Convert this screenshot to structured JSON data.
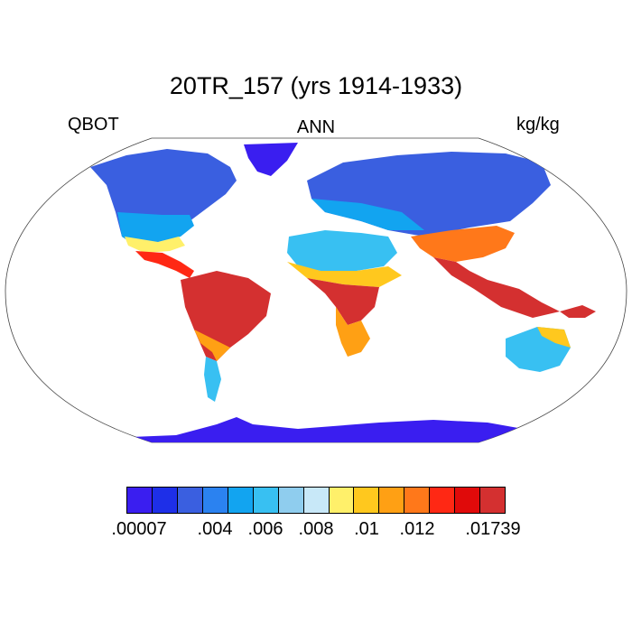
{
  "title": "20TR_157 (yrs 1914-1933)",
  "variable": "QBOT",
  "period": "ANN",
  "units": "kg/kg",
  "colorbar": {
    "colors": [
      "#3a1ef0",
      "#1e2fe8",
      "#3a5fe0",
      "#2b82f0",
      "#12a4f0",
      "#38c0f2",
      "#8fcdee",
      "#c8e8f8",
      "#fff06a",
      "#ffc81e",
      "#ffa014",
      "#ff781a",
      "#ff2814",
      "#e00a0a",
      "#d43030"
    ],
    "labels": [
      {
        "text": ".00007",
        "index": 0
      },
      {
        "text": ".004",
        "index": 3
      },
      {
        "text": ".006",
        "index": 5
      },
      {
        "text": ".008",
        "index": 7
      },
      {
        "text": ".01",
        "index": 9
      },
      {
        "text": ".012",
        "index": 11
      },
      {
        "text": ".01739",
        "index": 14
      }
    ]
  }
}
